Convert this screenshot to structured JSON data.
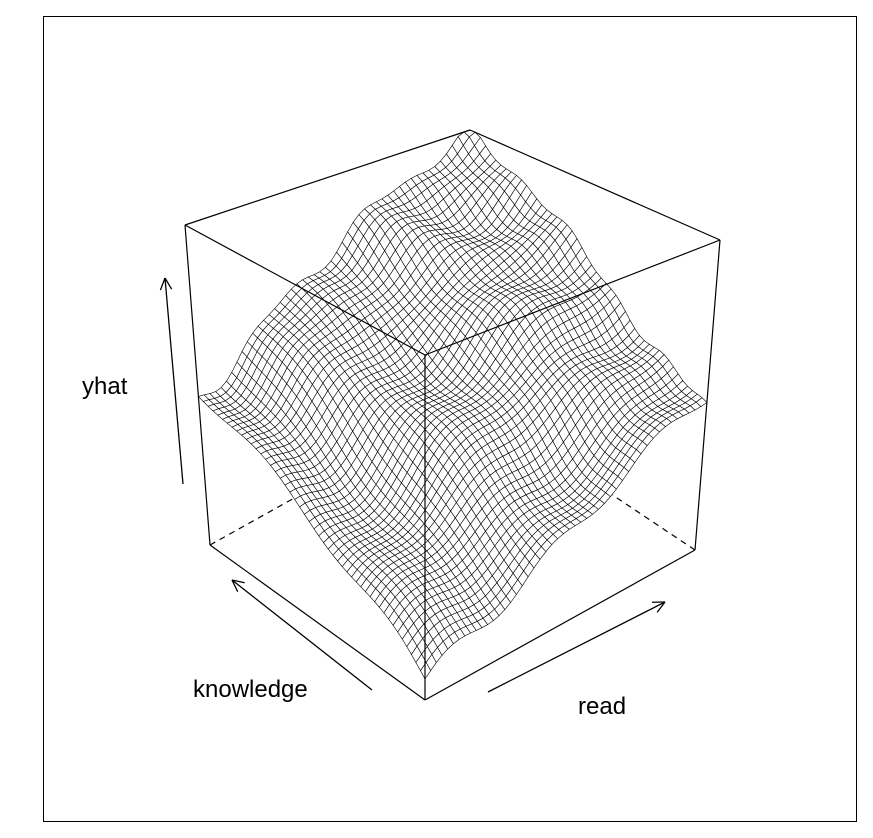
{
  "chart_data": {
    "type": "surface",
    "title": "",
    "x": {
      "label": "read",
      "range": [
        0,
        1
      ]
    },
    "y": {
      "label": "knowledge",
      "range": [
        0,
        1
      ]
    },
    "z": {
      "label": "yhat",
      "range": [
        0,
        1
      ]
    },
    "box": true,
    "ticks": false,
    "shade": "none",
    "surface_description_values": {
      "z_at_corners": {
        "x0_y0": 0.05,
        "x1_y0": 0.47,
        "x0_y1": 0.47,
        "x1_y1": 1.0
      }
    },
    "colors": {
      "line": "#000000",
      "background": "#ffffff"
    }
  }
}
